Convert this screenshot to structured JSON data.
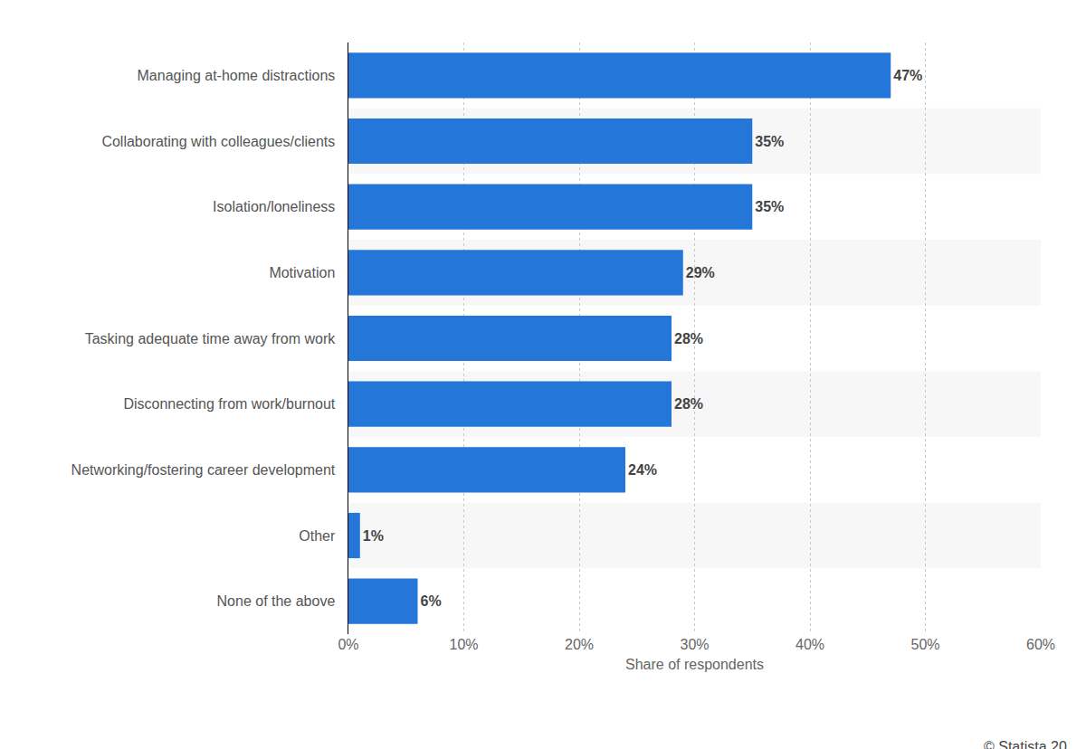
{
  "chart_data": {
    "type": "bar",
    "orientation": "horizontal",
    "categories": [
      "Managing at-home distractions",
      "Collaborating with colleagues/clients",
      "Isolation/loneliness",
      "Motivation",
      "Tasking adequate time away from work",
      "Disconnecting from work/burnout",
      "Networking/fostering career development",
      "Other",
      "None of the above"
    ],
    "values": [
      47,
      35,
      35,
      29,
      28,
      28,
      24,
      1,
      6
    ],
    "value_labels": [
      "47%",
      "35%",
      "35%",
      "29%",
      "28%",
      "28%",
      "24%",
      "1%",
      "6%"
    ],
    "data_labels": true,
    "color": "#2576d9",
    "x_label": "Share of respondents",
    "xlim": [
      0,
      60
    ],
    "xticks": [
      {
        "value": 0,
        "label": "0%"
      },
      {
        "value": 10,
        "label": "10%"
      },
      {
        "value": 20,
        "label": "20%"
      },
      {
        "value": 30,
        "label": "30%"
      },
      {
        "value": 40,
        "label": "40%"
      },
      {
        "value": 50,
        "label": "50%"
      },
      {
        "value": 60,
        "label": "60%"
      }
    ],
    "grid": true,
    "annotations": [
      "© Statista 20"
    ]
  }
}
